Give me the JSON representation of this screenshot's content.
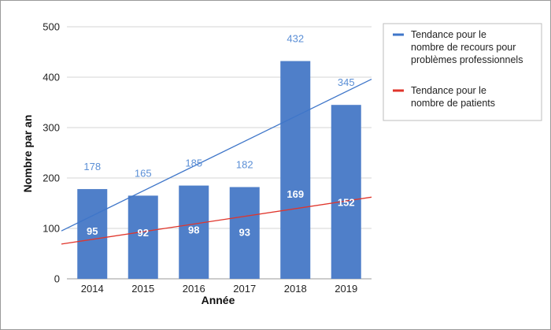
{
  "chart_data": {
    "type": "bar",
    "categories": [
      "2014",
      "2015",
      "2016",
      "2017",
      "2018",
      "2019"
    ],
    "series": [
      {
        "name": "Nombre de recours pour problèmes professionnels",
        "values": [
          178,
          165,
          185,
          182,
          432,
          345
        ]
      },
      {
        "name": "Nombre de patients",
        "values": [
          95,
          92,
          98,
          93,
          169,
          152
        ]
      }
    ],
    "top_labels": [
      "178",
      "165",
      "185",
      "182",
      "432",
      "345"
    ],
    "inner_labels": [
      "95",
      "92",
      "98",
      "93",
      "169",
      "152"
    ],
    "trendlines": [
      {
        "label": [
          "Tendance pour le",
          "nombre de recours pour",
          "problèmes professionnels"
        ],
        "color": "#3f76c9",
        "start": 95,
        "end": 396
      },
      {
        "label": [
          "Tendance pour le",
          "nombre de patients"
        ],
        "color": "#e0352b",
        "start": 69,
        "end": 162
      }
    ],
    "xlabel": "Année",
    "ylabel": "Nombre par an",
    "ylim": [
      0,
      500
    ],
    "yticks": [
      0,
      100,
      200,
      300,
      400,
      500
    ],
    "grid": true,
    "legend_position": "right",
    "bar_color": "#4f7fc9"
  }
}
